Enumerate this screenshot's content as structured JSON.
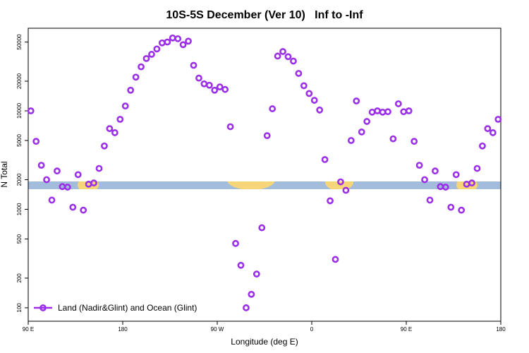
{
  "chart_data": {
    "type": "scatter",
    "title": "10S-5S December (Ver 10)   Inf to -Inf",
    "x_label": "Longitude (deg E)",
    "y_label": "N Total",
    "x": [
      92.5,
      97.5,
      102.5,
      107.5,
      112.5,
      117.5,
      122.5,
      127.5,
      132.5,
      137.5,
      142.5,
      147.5,
      152.5,
      157.5,
      162.5,
      167.5,
      172.5,
      177.5,
      182.5,
      187.5,
      192.5,
      197.5,
      202.5,
      207.5,
      212.5,
      217.5,
      222.5,
      227.5,
      232.5,
      237.5,
      242.5,
      247.5,
      252.5,
      257.5,
      262.5,
      267.5,
      272.5,
      277.5,
      282.5,
      287.5,
      292.5,
      297.5,
      302.5,
      307.5,
      312.5,
      317.5,
      322.5,
      327.5,
      332.5,
      337.5,
      342.5,
      347.5,
      352.5,
      357.5,
      362.5,
      367.5,
      372.5,
      377.5,
      382.5,
      387.5,
      392.5,
      397.5,
      402.5,
      407.5,
      412.5,
      417.5,
      422.5,
      427.5,
      432.5,
      437.5,
      442.5,
      447.5,
      452.5,
      457.5,
      462.5,
      467.5,
      472.5,
      477.5,
      482.5,
      487.5,
      492.5,
      497.5,
      502.5,
      507.5,
      512.5,
      517.5,
      522.5,
      527.5,
      532.5,
      537.5
    ],
    "series": [
      {
        "name": "Land (Nadir&Glint) and Ocean (Glint)",
        "color": "#9b30e8",
        "values": [
          10000,
          4900,
          2800,
          2000,
          1240,
          2450,
          1700,
          1680,
          1050,
          2250,
          980,
          1800,
          1850,
          2600,
          4400,
          6600,
          6000,
          8200,
          11200,
          16200,
          22000,
          28000,
          34000,
          37500,
          42500,
          49000,
          50000,
          55000,
          54000,
          47000,
          51000,
          29000,
          21500,
          18800,
          18200,
          16200,
          17500,
          16500,
          6900,
          450,
          270,
          100,
          137,
          220,
          650,
          5600,
          10500,
          36000,
          40000,
          35500,
          32000,
          24000,
          18000,
          15000,
          12800,
          10200,
          3200,
          1220,
          310,
          1900,
          1560,
          5000,
          12600,
          6100,
          7800,
          9700,
          10000,
          9700,
          9800,
          5200,
          11800,
          9800,
          10000,
          4900,
          2800,
          2000,
          1240,
          2450,
          1700,
          1680,
          1050,
          2250,
          980,
          1800,
          1850,
          2600,
          4400,
          6600,
          6000,
          8200
        ]
      }
    ],
    "xlim": [
      90,
      540
    ],
    "xticks": [
      {
        "value": 90,
        "label": "90 E"
      },
      {
        "value": 180,
        "label": "180"
      },
      {
        "value": 270,
        "label": "90 W"
      },
      {
        "value": 360,
        "label": "0"
      },
      {
        "value": 450,
        "label": "90 E"
      },
      {
        "value": 540,
        "label": "180"
      }
    ],
    "ylim": [
      73,
      69000
    ],
    "yticks": [
      100,
      200,
      500,
      1000,
      2000,
      5000,
      10000,
      20000,
      50000
    ],
    "log_y": true,
    "legend": "bottom-left"
  }
}
